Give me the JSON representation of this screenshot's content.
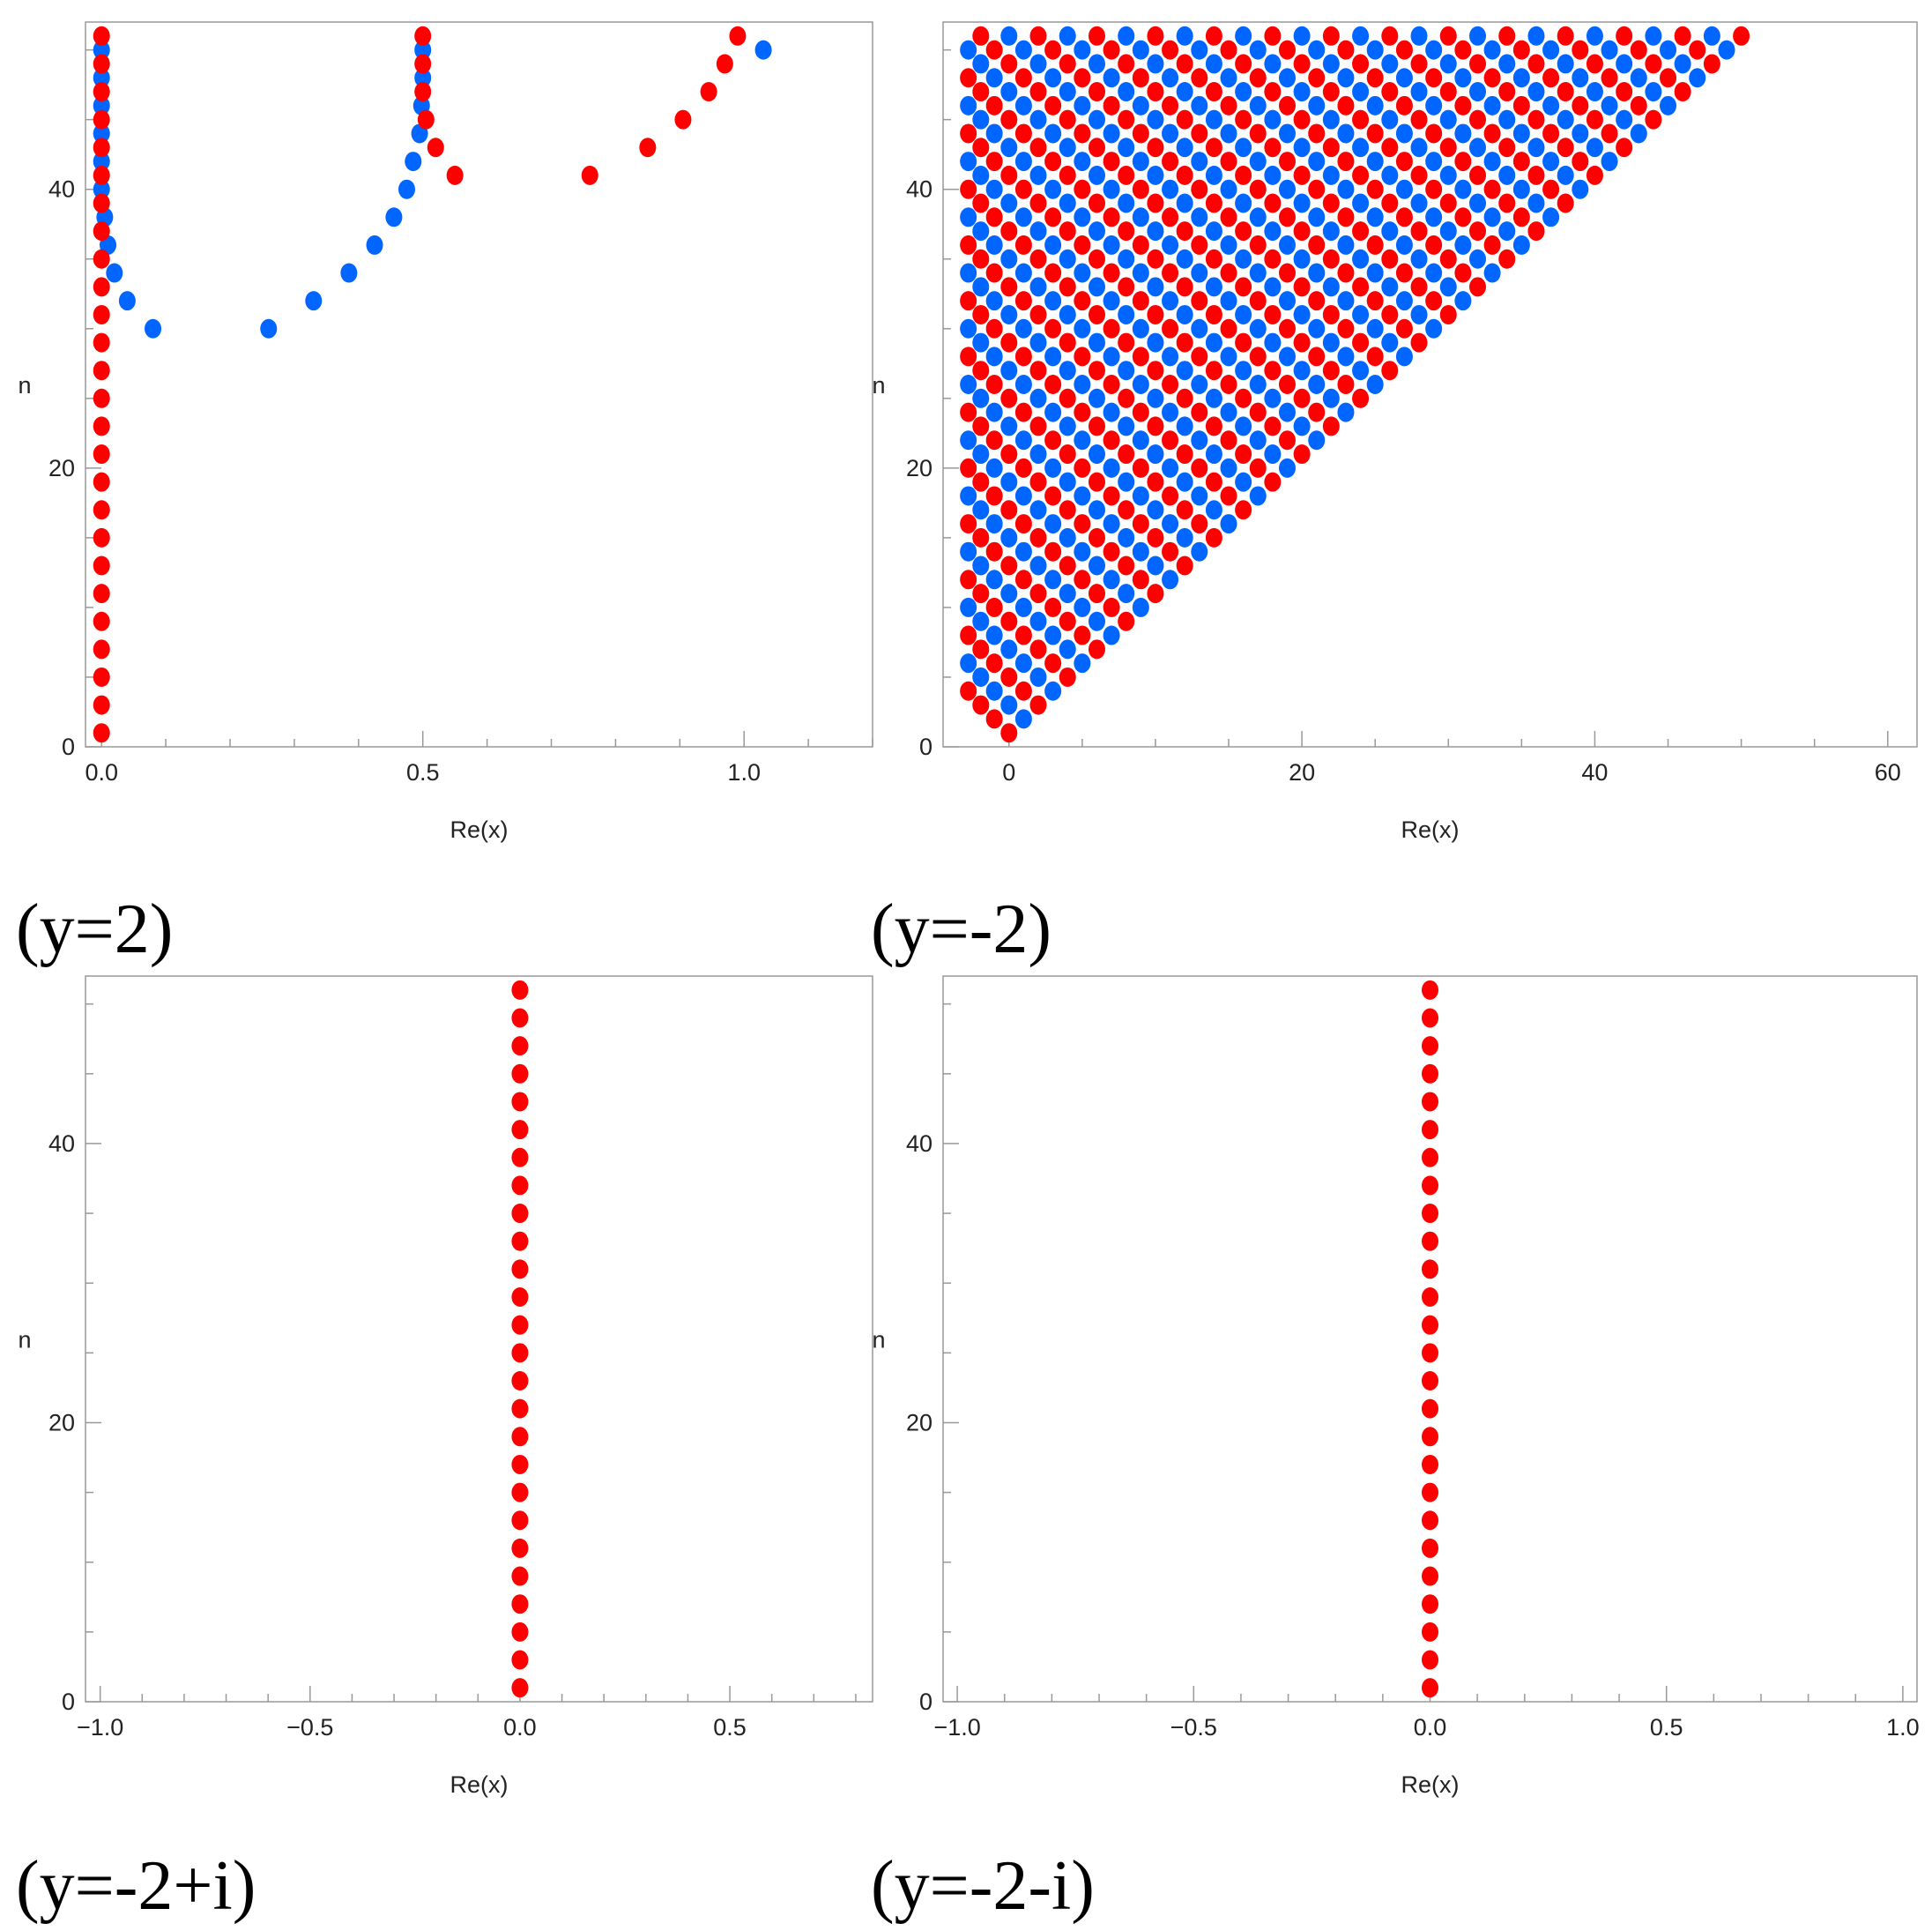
{
  "colors": {
    "red": "#ff0000",
    "blue": "#0066ff",
    "axis": "#999999"
  },
  "chart_data": [
    {
      "type": "scatter",
      "caption": "(y=2)",
      "xlabel": "Re(x)",
      "ylabel": "n",
      "xlim": [
        -0.025,
        1.2
      ],
      "ylim": [
        0,
        52
      ],
      "xticks": [
        0.0,
        0.5,
        1.0
      ],
      "xtick_labels": [
        "0.0",
        "0.5",
        "1.0"
      ],
      "xminor_step": 0.1,
      "yticks": [
        0,
        20,
        40
      ],
      "ytick_labels": [
        "0",
        "20",
        "40"
      ],
      "yminor_step": 5,
      "series": [
        {
          "name": "red",
          "color": "#ff0000",
          "points": [
            [
              0,
              1
            ],
            [
              0,
              3
            ],
            [
              0,
              5
            ],
            [
              0,
              7
            ],
            [
              0,
              9
            ],
            [
              0,
              11
            ],
            [
              0,
              13
            ],
            [
              0,
              15
            ],
            [
              0,
              17
            ],
            [
              0,
              19
            ],
            [
              0,
              21
            ],
            [
              0,
              23
            ],
            [
              0,
              25
            ],
            [
              0,
              27
            ],
            [
              0,
              29
            ],
            [
              0,
              31
            ],
            [
              0,
              33
            ],
            [
              0,
              35
            ],
            [
              0,
              37
            ],
            [
              0,
              39
            ],
            [
              0,
              41
            ],
            [
              0,
              43
            ],
            [
              0,
              45
            ],
            [
              0,
              47
            ],
            [
              0,
              49
            ],
            [
              0,
              51
            ],
            [
              0.5,
              51
            ],
            [
              0.5,
              49
            ],
            [
              0.5,
              47
            ],
            [
              0.505,
              45
            ],
            [
              0.52,
              43
            ],
            [
              0.55,
              41
            ],
            [
              0.76,
              41
            ],
            [
              0.85,
              43
            ],
            [
              0.905,
              45
            ],
            [
              0.945,
              47
            ],
            [
              0.97,
              49
            ],
            [
              0.99,
              51
            ]
          ]
        },
        {
          "name": "blue",
          "color": "#0066ff",
          "points": [
            [
              0,
              50
            ],
            [
              0,
              48
            ],
            [
              0,
              46
            ],
            [
              0,
              44
            ],
            [
              0,
              42
            ],
            [
              0,
              40
            ],
            [
              0.005,
              38
            ],
            [
              0.01,
              36
            ],
            [
              0.02,
              34
            ],
            [
              0.04,
              32
            ],
            [
              0.08,
              30
            ],
            [
              0.26,
              30
            ],
            [
              0.33,
              32
            ],
            [
              0.385,
              34
            ],
            [
              0.425,
              36
            ],
            [
              0.455,
              38
            ],
            [
              0.475,
              40
            ],
            [
              0.485,
              42
            ],
            [
              0.495,
              44
            ],
            [
              0.498,
              46
            ],
            [
              0.5,
              48
            ],
            [
              0.5,
              50
            ],
            [
              1.03,
              50
            ]
          ]
        }
      ]
    },
    {
      "type": "scatter",
      "caption": "(y=-2)",
      "xlabel": "Re(x)",
      "ylabel": "n",
      "xlim": [
        -4.5,
        62
      ],
      "ylim": [
        0,
        52
      ],
      "xticks": [
        0,
        20,
        40,
        60
      ],
      "xtick_labels": [
        "0",
        "20",
        "40",
        "60"
      ],
      "xminor_step": 5,
      "yticks": [
        0,
        20,
        40
      ],
      "ytick_labels": [
        "0",
        "20",
        "40"
      ],
      "yminor_step": 5,
      "generator": "triangular_lattice",
      "pattern": "Points lie on lines from the origin: for n, Re(x) approx 2k - (n - 1) for k = 0..n-1 (clipped near the left edge); alternating red/blue by parity of k",
      "series": [
        {
          "name": "red",
          "color": "#ff0000"
        },
        {
          "name": "blue",
          "color": "#0066ff"
        }
      ]
    },
    {
      "type": "scatter",
      "caption": "(y=-2+i)",
      "xlabel": "Re(x)",
      "ylabel": "n",
      "xlim": [
        -1.035,
        0.84
      ],
      "ylim": [
        0,
        52
      ],
      "xticks": [
        -1.0,
        -0.5,
        0.0,
        0.5
      ],
      "xtick_labels": [
        "−1.0",
        "−0.5",
        "0.0",
        "0.5"
      ],
      "xminor_step": 0.1,
      "yticks": [
        0,
        20,
        40
      ],
      "ytick_labels": [
        "0",
        "20",
        "40"
      ],
      "yminor_step": 5,
      "series": [
        {
          "name": "red",
          "color": "#ff0000",
          "points": [
            [
              0,
              1
            ],
            [
              0,
              3
            ],
            [
              0,
              5
            ],
            [
              0,
              7
            ],
            [
              0,
              9
            ],
            [
              0,
              11
            ],
            [
              0,
              13
            ],
            [
              0,
              15
            ],
            [
              0,
              17
            ],
            [
              0,
              19
            ],
            [
              0,
              21
            ],
            [
              0,
              23
            ],
            [
              0,
              25
            ],
            [
              0,
              27
            ],
            [
              0,
              29
            ],
            [
              0,
              31
            ],
            [
              0,
              33
            ],
            [
              0,
              35
            ],
            [
              0,
              37
            ],
            [
              0,
              39
            ],
            [
              0,
              41
            ],
            [
              0,
              43
            ],
            [
              0,
              45
            ],
            [
              0,
              47
            ],
            [
              0,
              49
            ],
            [
              0,
              51
            ]
          ]
        }
      ]
    },
    {
      "type": "scatter",
      "caption": "(y=-2-i)",
      "xlabel": "Re(x)",
      "ylabel": "n",
      "xlim": [
        -1.03,
        1.03
      ],
      "ylim": [
        0,
        52
      ],
      "xticks": [
        -1.0,
        -0.5,
        0.0,
        0.5,
        1.0
      ],
      "xtick_labels": [
        "−1.0",
        "−0.5",
        "0.0",
        "0.5",
        "1.0"
      ],
      "xminor_step": 0.1,
      "yticks": [
        0,
        20,
        40
      ],
      "ytick_labels": [
        "0",
        "20",
        "40"
      ],
      "yminor_step": 5,
      "series": [
        {
          "name": "red",
          "color": "#ff0000",
          "points": [
            [
              0,
              1
            ],
            [
              0,
              3
            ],
            [
              0,
              5
            ],
            [
              0,
              7
            ],
            [
              0,
              9
            ],
            [
              0,
              11
            ],
            [
              0,
              13
            ],
            [
              0,
              15
            ],
            [
              0,
              17
            ],
            [
              0,
              19
            ],
            [
              0,
              21
            ],
            [
              0,
              23
            ],
            [
              0,
              25
            ],
            [
              0,
              27
            ],
            [
              0,
              29
            ],
            [
              0,
              31
            ],
            [
              0,
              33
            ],
            [
              0,
              35
            ],
            [
              0,
              37
            ],
            [
              0,
              39
            ],
            [
              0,
              41
            ],
            [
              0,
              43
            ],
            [
              0,
              45
            ],
            [
              0,
              47
            ],
            [
              0,
              49
            ],
            [
              0,
              51
            ]
          ]
        }
      ]
    }
  ]
}
